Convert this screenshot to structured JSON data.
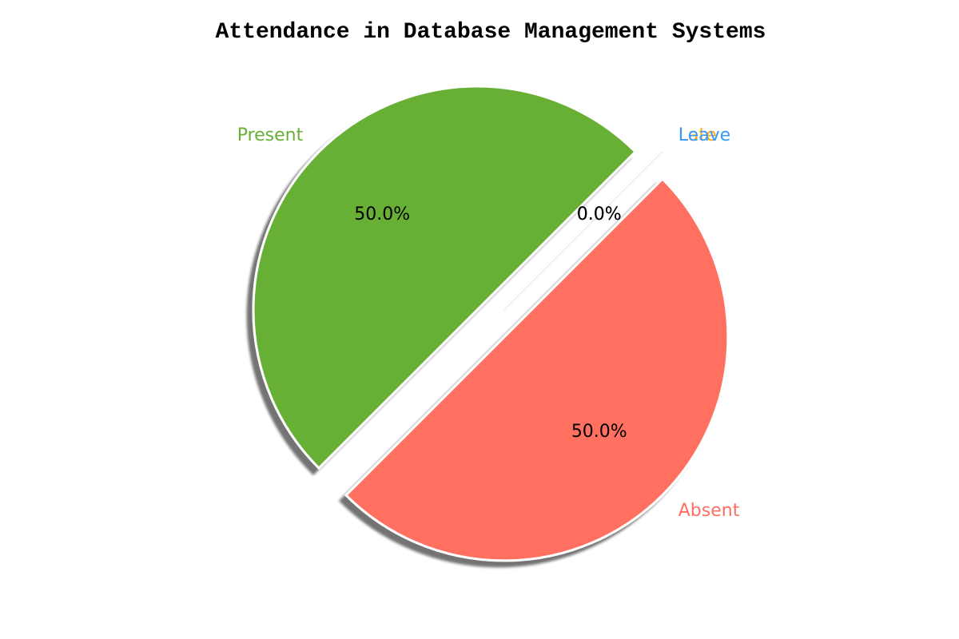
{
  "chart_data": {
    "type": "pie",
    "title": "Attendance in Database Management Systems",
    "categories": [
      "Present",
      "Absent",
      "Late",
      "Leave"
    ],
    "values": [
      50.0,
      50.0,
      0.0,
      0.0
    ],
    "percent_labels": [
      "50.0%",
      "50.0%",
      "0.0%",
      "0.0%"
    ],
    "colors": [
      "#67b034",
      "#ff6f61",
      "#ffa500",
      "#3399ff"
    ],
    "exploded": true,
    "shadow": true,
    "start_angle_deg": 45
  }
}
